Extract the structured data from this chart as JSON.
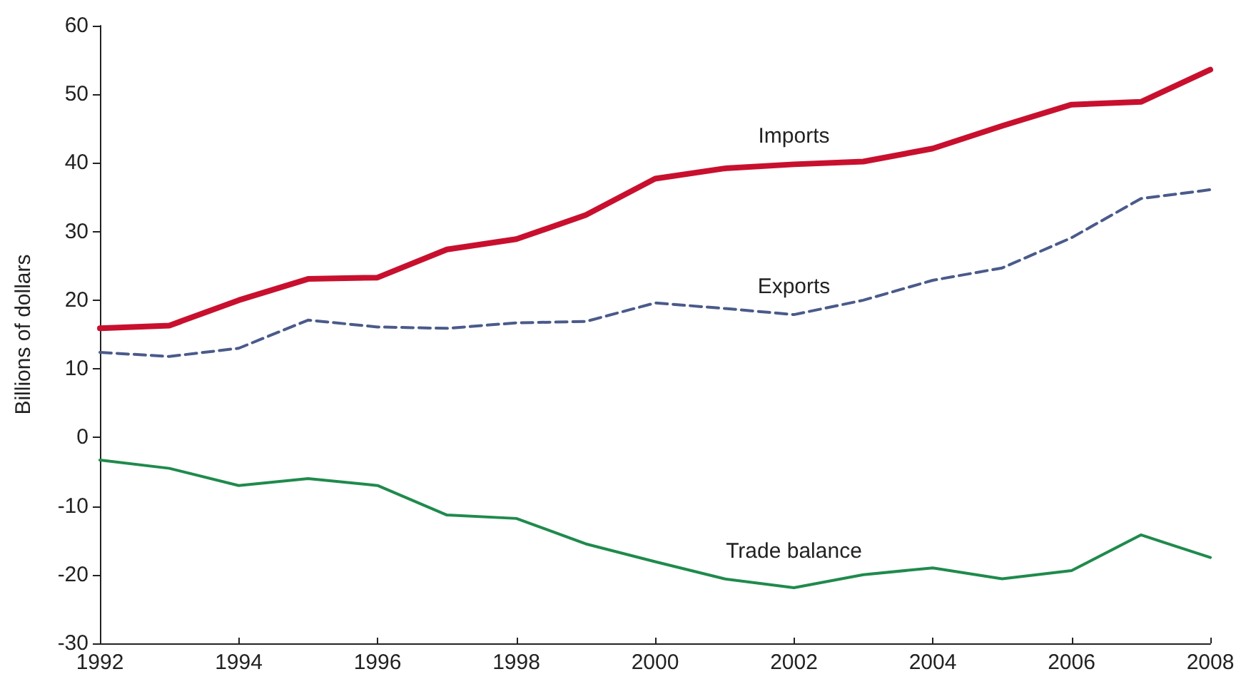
{
  "chart_data": {
    "type": "line",
    "ylabel": "Billions of dollars",
    "x": [
      1992,
      1993,
      1994,
      1995,
      1996,
      1997,
      1998,
      1999,
      2000,
      2001,
      2002,
      2003,
      2004,
      2005,
      2006,
      2007,
      2008
    ],
    "series": [
      {
        "name": "Imports",
        "color": "#c8102e",
        "line_style": "solid",
        "values": [
          15.9,
          16.3,
          20,
          23.1,
          23.3,
          27.4,
          28.9,
          32.4,
          37.7,
          39.2,
          39.8,
          40.2,
          42.1,
          45.4,
          48.5,
          48.9,
          53.6
        ]
      },
      {
        "name": "Exports",
        "color": "#4a5a8a",
        "line_style": "dashed",
        "values": [
          12.4,
          11.8,
          13,
          17.1,
          16.1,
          15.9,
          16.7,
          16.9,
          19.6,
          18.8,
          17.9,
          20,
          22.9,
          24.7,
          29.1,
          34.8,
          36.1
        ]
      },
      {
        "name": "Trade balance",
        "color": "#1f8a4c",
        "line_style": "solid",
        "values": [
          -3.3,
          -4.5,
          -7,
          -6,
          -7,
          -11.3,
          -11.8,
          -15.5,
          -18.1,
          -20.6,
          -21.9,
          -20,
          -19,
          -20.6,
          -19.4,
          -14.2,
          -17.5
        ]
      }
    ],
    "xlim": [
      1992,
      2008
    ],
    "xticks": [
      1992,
      1994,
      1996,
      1998,
      2000,
      2002,
      2004,
      2006,
      2008
    ],
    "ylim": [
      -30,
      60
    ],
    "yticks": [
      -30,
      -20,
      -10,
      0,
      10,
      20,
      30,
      40,
      50,
      60
    ],
    "grid": false,
    "legend": false,
    "marker": "none"
  }
}
